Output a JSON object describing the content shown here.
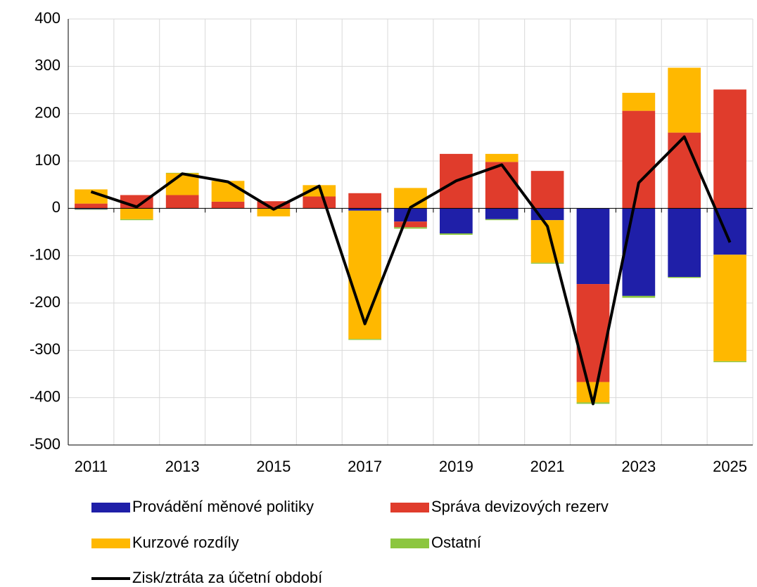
{
  "chart_data": {
    "type": "bar",
    "categories": [
      "2011",
      null,
      "2013",
      null,
      "2015",
      null,
      "2017",
      null,
      "2019",
      null,
      "2021",
      null,
      "2023",
      null,
      "2025"
    ],
    "series": [
      {
        "name": "Provádění měnové politiky",
        "color": "#1f1fa8",
        "values": [
          -2,
          0,
          0,
          0,
          0,
          0,
          -5,
          -28,
          -53,
          -23,
          -25,
          -160,
          -185,
          -145,
          -98
        ]
      },
      {
        "name": "Správa devizových rezerv",
        "color": "#e03c2c",
        "values": [
          10,
          28,
          28,
          14,
          15,
          25,
          32,
          -12,
          115,
          98,
          79,
          -207,
          206,
          160,
          251
        ]
      },
      {
        "name": "Kurzové rozdíly",
        "color": "#ffb800",
        "values": [
          30,
          -23,
          46,
          44,
          -17,
          24,
          -271,
          43,
          0,
          17,
          -90,
          -43,
          38,
          137,
          -225
        ]
      },
      {
        "name": "Ostatní",
        "color": "#8cc63f",
        "values": [
          -1,
          -2,
          1,
          0,
          0,
          0,
          -2,
          -3,
          -3,
          -2,
          -2,
          -3,
          -4,
          -2,
          -2
        ]
      }
    ],
    "line": {
      "name": "Zisk/ztráta za účetní období",
      "color": "#000000",
      "values": [
        35,
        3,
        73,
        56,
        -2,
        47,
        -244,
        2,
        58,
        92,
        -38,
        -413,
        54,
        151,
        -72
      ]
    },
    "ylim": [
      -500,
      400
    ],
    "yticks": [
      -500,
      -400,
      -300,
      -200,
      -100,
      0,
      100,
      200,
      300,
      400
    ],
    "grid": true
  }
}
